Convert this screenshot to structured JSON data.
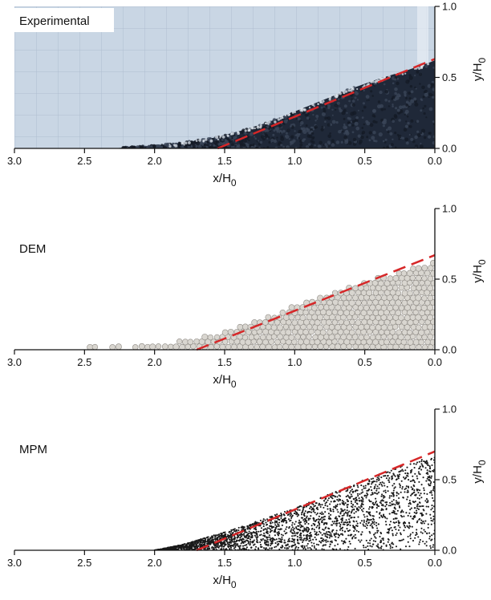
{
  "figure": {
    "colors": {
      "fit_line": "#d62728",
      "axis": "#111111",
      "dem_particle": "#d9d6d0",
      "dem_particle_edge": "#8e8a84",
      "mpm_point": "#1a1a1a",
      "photo_background": "#c9d6e4",
      "photo_grid": "#aebdd0",
      "photo_granular": "#1f2838"
    }
  },
  "chart_data": [
    {
      "type": "scatter",
      "panel_label": "Experimental",
      "xlabel": "x/H",
      "xlabel_sub": "0",
      "ylabel": "y/H",
      "ylabel_sub": "0",
      "xlim": [
        3.0,
        0.0
      ],
      "ylim": [
        0.0,
        1.0
      ],
      "x_reversed": true,
      "xticks": [
        "3.0",
        "2.5",
        "2.0",
        "1.5",
        "1.0",
        "0.5",
        "0.0"
      ],
      "xtick_values": [
        3.0,
        2.5,
        2.0,
        1.5,
        1.0,
        0.5,
        0.0
      ],
      "yticks": [
        "0.0",
        "0.5",
        "1.0"
      ],
      "ytick_values": [
        0.0,
        0.5,
        1.0
      ],
      "fit_line": {
        "x": [
          1.55,
          0.0
        ],
        "y": [
          0.0,
          0.63
        ]
      },
      "surface_profile": {
        "x": [
          2.3,
          2.0,
          1.8,
          1.6,
          1.4,
          1.2,
          1.0,
          0.8,
          0.6,
          0.4,
          0.2,
          0.05,
          0.0
        ],
        "y": [
          0.0,
          0.02,
          0.04,
          0.07,
          0.12,
          0.18,
          0.26,
          0.34,
          0.42,
          0.49,
          0.55,
          0.6,
          0.62
        ]
      }
    },
    {
      "type": "scatter",
      "panel_label": "DEM",
      "xlabel": "x/H",
      "xlabel_sub": "0",
      "ylabel": "y/H",
      "ylabel_sub": "0",
      "xlim": [
        3.0,
        0.0
      ],
      "ylim": [
        0.0,
        1.0
      ],
      "x_reversed": true,
      "xticks": [
        "3.0",
        "2.5",
        "2.0",
        "1.5",
        "1.0",
        "0.5",
        "0.0"
      ],
      "xtick_values": [
        3.0,
        2.5,
        2.0,
        1.5,
        1.0,
        0.5,
        0.0
      ],
      "yticks": [
        "0.0",
        "0.5",
        "1.0"
      ],
      "ytick_values": [
        0.0,
        0.5,
        1.0
      ],
      "fit_line": {
        "x": [
          1.7,
          0.0
        ],
        "y": [
          0.0,
          0.67
        ]
      },
      "surface_profile": {
        "x": [
          3.0,
          2.5,
          2.0,
          1.8,
          1.6,
          1.4,
          1.2,
          1.0,
          0.8,
          0.6,
          0.4,
          0.2,
          0.0
        ],
        "y": [
          0.02,
          0.02,
          0.04,
          0.06,
          0.1,
          0.16,
          0.23,
          0.31,
          0.38,
          0.45,
          0.51,
          0.57,
          0.62
        ]
      }
    },
    {
      "type": "scatter",
      "panel_label": "MPM",
      "xlabel": "x/H",
      "xlabel_sub": "0",
      "ylabel": "y/H",
      "ylabel_sub": "0",
      "xlim": [
        3.0,
        0.0
      ],
      "ylim": [
        0.0,
        1.0
      ],
      "x_reversed": true,
      "xticks": [
        "3.0",
        "2.5",
        "2.0",
        "1.5",
        "1.0",
        "0.5",
        "0.0"
      ],
      "xtick_values": [
        3.0,
        2.5,
        2.0,
        1.5,
        1.0,
        0.5,
        0.0
      ],
      "yticks": [
        "0.0",
        "0.5",
        "1.0"
      ],
      "ytick_values": [
        0.0,
        0.5,
        1.0
      ],
      "fit_line": {
        "x": [
          1.7,
          0.0
        ],
        "y": [
          0.0,
          0.7
        ]
      },
      "surface_profile": {
        "x": [
          2.0,
          1.8,
          1.6,
          1.4,
          1.2,
          1.0,
          0.8,
          0.6,
          0.4,
          0.2,
          0.1,
          0.0
        ],
        "y": [
          0.0,
          0.04,
          0.1,
          0.16,
          0.23,
          0.3,
          0.38,
          0.46,
          0.54,
          0.61,
          0.64,
          0.66
        ]
      }
    }
  ]
}
